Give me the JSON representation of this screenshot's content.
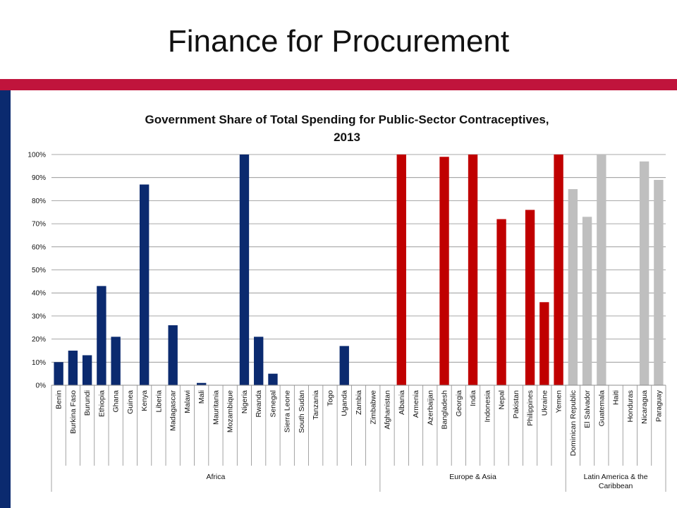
{
  "slide_title": "Finance for Procurement",
  "chart_data": {
    "type": "bar",
    "title_lines": [
      "Government Share of Total Spending for Public-Sector Contraceptives,",
      "2013"
    ],
    "ylim": [
      0,
      100
    ],
    "yticks": [
      "0%",
      "10%",
      "20%",
      "30%",
      "40%",
      "50%",
      "60%",
      "70%",
      "80%",
      "90%",
      "100%"
    ],
    "grid": true,
    "colors": {
      "Africa": "#0b2a6f",
      "Europe & Asia": "#c00000",
      "Latin America & the Caribbean": "#bfbfbf"
    },
    "groups": [
      {
        "name": "Africa",
        "label_lines": [
          "Africa"
        ],
        "count": 23
      },
      {
        "name": "Europe & Asia",
        "label_lines": [
          "Europe & Asia"
        ],
        "count": 13
      },
      {
        "name": "Latin America & the Caribbean",
        "label_lines": [
          "Latin America & the",
          "Caribbean"
        ],
        "count": 7
      }
    ],
    "categories": [
      "Benin",
      "Burkina Faso",
      "Burundi",
      "Ethiopia",
      "Ghana",
      "Guinea",
      "Kenya",
      "Liberia",
      "Madagascar",
      "Malawi",
      "Mali",
      "Mauritania",
      "Mozambique",
      "Nigeria",
      "Rwanda",
      "Senegal",
      "Sierra Leone",
      "South Sudan",
      "Tanzania",
      "Togo",
      "Uganda",
      "Zambia",
      "Zimbabwe",
      "Afghanistan",
      "Albania",
      "Armenia",
      "Azerbaijan",
      "Bangladesh",
      "Georgia",
      "India",
      "Indonesia",
      "Nepal",
      "Pakistan",
      "Philippines",
      "Ukraine",
      "Yemen",
      "Dominican Republic",
      "El Salvador",
      "Guatemala",
      "Haiti",
      "Honduras",
      "Nicaragua",
      "Paraguay"
    ],
    "values": [
      10,
      15,
      13,
      43,
      21,
      0,
      87,
      0,
      26,
      0,
      1,
      0,
      0,
      100,
      21,
      5,
      0,
      0,
      0,
      0,
      17,
      0,
      0,
      0,
      100,
      0,
      0,
      99,
      0,
      100,
      0,
      72,
      0,
      76,
      36,
      100,
      85,
      73,
      100,
      0,
      0,
      97,
      89
    ]
  }
}
